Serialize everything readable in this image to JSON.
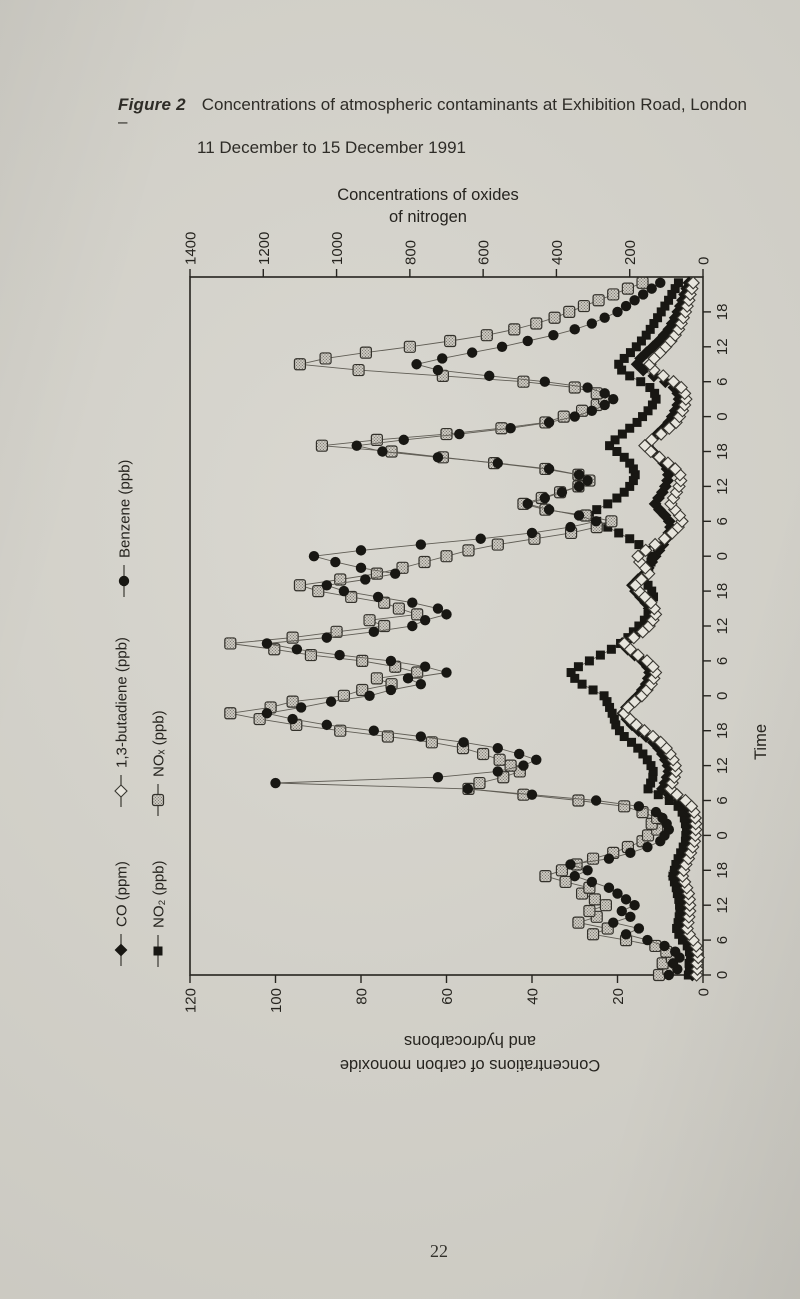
{
  "page": {
    "figure_label": "Figure 2",
    "caption_line1": "Concentrations of atmospheric contaminants at Exhibition Road, London –",
    "caption_line2": "11 December to 15 December 1991",
    "page_number": "22"
  },
  "colors": {
    "paper": "#d5d3cb",
    "ink": "#26241f",
    "series_line": "#605d55",
    "marker_dark": "#181713",
    "hatch_fill": "#cfccc4",
    "hatch_dot": "#6e6b63",
    "open_fill": "#e7e5dd"
  },
  "chart_data": {
    "type": "line",
    "orientation": "rotated 90deg: time runs bottom-to-top, concentrations run right(0)-to-left(max)",
    "time_axis": {
      "label": "Time",
      "hours_total": 120,
      "tick_step_hours": 6,
      "tick_labels_cycle": [
        "0",
        "6",
        "12",
        "18"
      ],
      "days": 5,
      "period": "11 December to 15 December 1991"
    },
    "nox_axis": {
      "title_lines": [
        "Concentrations of oxides",
        "of nitrogen"
      ],
      "min": 0,
      "max": 1400,
      "ticks": [
        1400,
        1200,
        1000,
        800,
        600,
        400,
        200,
        0
      ]
    },
    "co_hc_axis": {
      "title_lines": [
        "Concentrations of carbon monoxide",
        "and hydrocarbons"
      ],
      "min": 0,
      "max": 120,
      "ticks": [
        120,
        100,
        80,
        60,
        40,
        20,
        0
      ]
    },
    "series": [
      {
        "name": "CO (ppm)",
        "marker": "filled-diamond",
        "axis": "co_hc",
        "values": [
          2.5,
          2.1,
          2.3,
          1.9,
          2.1,
          2.5,
          3.6,
          4.9,
          5.5,
          5.2,
          4.9,
          4.6,
          4.6,
          4.8,
          5.1,
          5.5,
          6.1,
          6.8,
          6.4,
          5.7,
          4.9,
          4.2,
          3.5,
          3.0,
          2.7,
          2.5,
          2.5,
          2.7,
          3.1,
          3.9,
          5.6,
          7.9,
          9.5,
          8.9,
          8.4,
          8.0,
          8.2,
          8.8,
          9.5,
          10.4,
          11.6,
          13.3,
          15.0,
          16.6,
          17.8,
          18.7,
          17.9,
          16.6,
          15.2,
          14.2,
          13.3,
          12.8,
          12.5,
          13.0,
          14.2,
          16.0,
          17.6,
          18.9,
          16.9,
          15.0,
          13.6,
          12.8,
          12.3,
          12.6,
          13.4,
          14.6,
          15.8,
          16.5,
          15.2,
          13.7,
          12.8,
          12.0,
          11.2,
          10.3,
          9.4,
          8.6,
          8.0,
          7.6,
          7.9,
          8.9,
          10.2,
          11.2,
          10.4,
          9.5,
          8.8,
          8.3,
          8.1,
          8.4,
          9.2,
          10.4,
          11.8,
          13.0,
          12.0,
          10.6,
          9.2,
          8.0,
          7.2,
          6.5,
          5.9,
          5.6,
          5.9,
          6.8,
          8.8,
          11.5,
          14.0,
          15.4,
          14.6,
          13.2,
          11.7,
          10.3,
          9.1,
          8.0,
          7.2,
          6.5,
          5.9,
          5.3,
          4.8,
          4.3,
          3.8,
          3.3
        ]
      },
      {
        "name": "NO₂ (ppb)",
        "marker": "filled-square",
        "axis": "nox",
        "values": [
          40,
          37,
          38,
          34,
          37,
          43,
          56,
          66,
          72,
          68,
          65,
          63,
          64,
          66,
          70,
          73,
          78,
          82,
          78,
          74,
          68,
          61,
          54,
          48,
          47,
          45,
          48,
          51,
          57,
          68,
          92,
          122,
          150,
          143,
          137,
          136,
          142,
          152,
          164,
          178,
          195,
          215,
          228,
          238,
          242,
          248,
          255,
          262,
          270,
          300,
          330,
          350,
          360,
          340,
          310,
          280,
          250,
          225,
          205,
          190,
          175,
          160,
          150,
          145,
          140,
          135,
          140,
          150,
          160,
          155,
          148,
          142,
          140,
          155,
          175,
          200,
          230,
          260,
          290,
          310,
          290,
          260,
          235,
          215,
          200,
          190,
          185,
          190,
          200,
          215,
          235,
          255,
          240,
          220,
          200,
          180,
          165,
          150,
          138,
          128,
          132,
          145,
          170,
          200,
          222,
          230,
          215,
          198,
          182,
          168,
          155,
          144,
          134,
          124,
          114,
          104,
          94,
          85,
          76,
          67
        ]
      },
      {
        "name": "1,3-butadiene (ppb)",
        "marker": "open-diamond",
        "axis": "co_hc",
        "values": [
          1.5,
          1.3,
          1.4,
          1.1,
          1.3,
          1.6,
          2.3,
          3.2,
          3.7,
          3.5,
          3.3,
          3.1,
          3.1,
          3.2,
          3.4,
          3.8,
          4.3,
          4.8,
          4.5,
          4.0,
          3.4,
          2.9,
          2.4,
          2.0,
          1.8,
          1.7,
          1.7,
          1.8,
          2.1,
          2.7,
          4.1,
          6.1,
          7.6,
          7.2,
          6.7,
          6.3,
          6.5,
          7.0,
          7.7,
          8.6,
          9.9,
          11.7,
          13.7,
          15.6,
          17.1,
          18.4,
          17.5,
          16.0,
          14.3,
          13.1,
          12.1,
          11.5,
          11.1,
          11.7,
          13.1,
          15.2,
          17.0,
          18.4,
          16.2,
          14.1,
          12.6,
          11.7,
          11.1,
          11.4,
          12.2,
          13.6,
          15.0,
          15.8,
          14.4,
          12.7,
          13.5,
          14.8,
          15.2,
          13.4,
          11.2,
          9.0,
          7.2,
          5.8,
          4.9,
          5.5,
          6.6,
          7.5,
          6.9,
          6.2,
          5.6,
          5.2,
          5.4,
          6.5,
          8.2,
          10.2,
          12.2,
          13.6,
          12.0,
          9.8,
          7.9,
          6.3,
          5.5,
          4.8,
          4.3,
          4.0,
          4.3,
          5.1,
          6.9,
          9.3,
          11.5,
          12.4,
          11.4,
          10.0,
          8.7,
          7.5,
          6.5,
          5.7,
          5.1,
          4.6,
          4.1,
          3.7,
          3.3,
          3.0,
          2.6,
          2.3
        ]
      },
      {
        "name": "NOₓ (ppb)",
        "marker": "hatched-square",
        "axis": "nox",
        "values": [
          120,
          95,
          110,
          85,
          100,
          130,
          210,
          300,
          260,
          340,
          290,
          310,
          265,
          295,
          330,
          310,
          375,
          430,
          385,
          345,
          300,
          245,
          205,
          165,
          150,
          125,
          140,
          125,
          165,
          215,
          340,
          490,
          640,
          610,
          545,
          500,
          525,
          555,
          600,
          655,
          740,
          860,
          990,
          1110,
          1210,
          1290,
          1180,
          1120,
          980,
          930,
          850,
          890,
          780,
          840,
          930,
          1070,
          1170,
          1290,
          1120,
          1000,
          870,
          910,
          780,
          830,
          870,
          960,
          1050,
          1100,
          990,
          890,
          820,
          760,
          700,
          640,
          560,
          460,
          360,
          290,
          250,
          320,
          430,
          490,
          440,
          390,
          340,
          310,
          340,
          430,
          570,
          710,
          850,
          1040,
          890,
          700,
          550,
          430,
          380,
          330,
          290,
          270,
          290,
          350,
          490,
          710,
          940,
          1100,
          1030,
          920,
          800,
          690,
          590,
          515,
          455,
          405,
          365,
          325,
          285,
          245,
          205,
          165
        ]
      },
      {
        "name": "Benzene (ppb)",
        "marker": "filled-circle",
        "axis": "co_hc",
        "values": [
          8,
          6,
          7,
          5.5,
          6.5,
          9,
          13,
          18,
          15,
          21,
          17,
          19,
          16,
          18,
          20,
          22,
          26,
          30,
          27,
          31,
          22,
          17,
          13,
          10,
          9,
          8,
          8.5,
          9.5,
          11,
          15,
          25,
          40,
          55,
          100,
          62,
          48,
          42,
          39,
          43,
          48,
          56,
          66,
          77,
          88,
          96,
          102,
          94,
          87,
          78,
          73,
          66,
          69,
          60,
          65,
          73,
          85,
          95,
          102,
          88,
          77,
          68,
          65,
          60,
          62,
          68,
          76,
          84,
          88,
          79,
          72,
          80,
          86,
          91,
          80,
          66,
          52,
          40,
          31,
          25,
          29,
          36,
          41,
          37,
          33,
          29,
          27,
          29,
          36,
          48,
          62,
          75,
          81,
          70,
          57,
          45,
          36,
          30,
          26,
          23,
          21,
          23,
          27,
          37,
          50,
          62,
          67,
          61,
          54,
          47,
          41,
          35,
          30,
          26,
          23,
          20,
          18,
          16,
          14,
          12,
          10
        ]
      }
    ]
  },
  "legend": {
    "items": [
      {
        "label": "CO (ppm)",
        "marker": "filled-diamond"
      },
      {
        "label": "NO₂ (ppb)",
        "marker": "filled-square"
      },
      {
        "label": "1,3-butadiene (ppb)",
        "marker": "open-diamond"
      },
      {
        "label": "NOₓ (ppb)",
        "marker": "hatched-square"
      },
      {
        "label": "Benzene (ppb)",
        "marker": "filled-circle"
      }
    ]
  }
}
